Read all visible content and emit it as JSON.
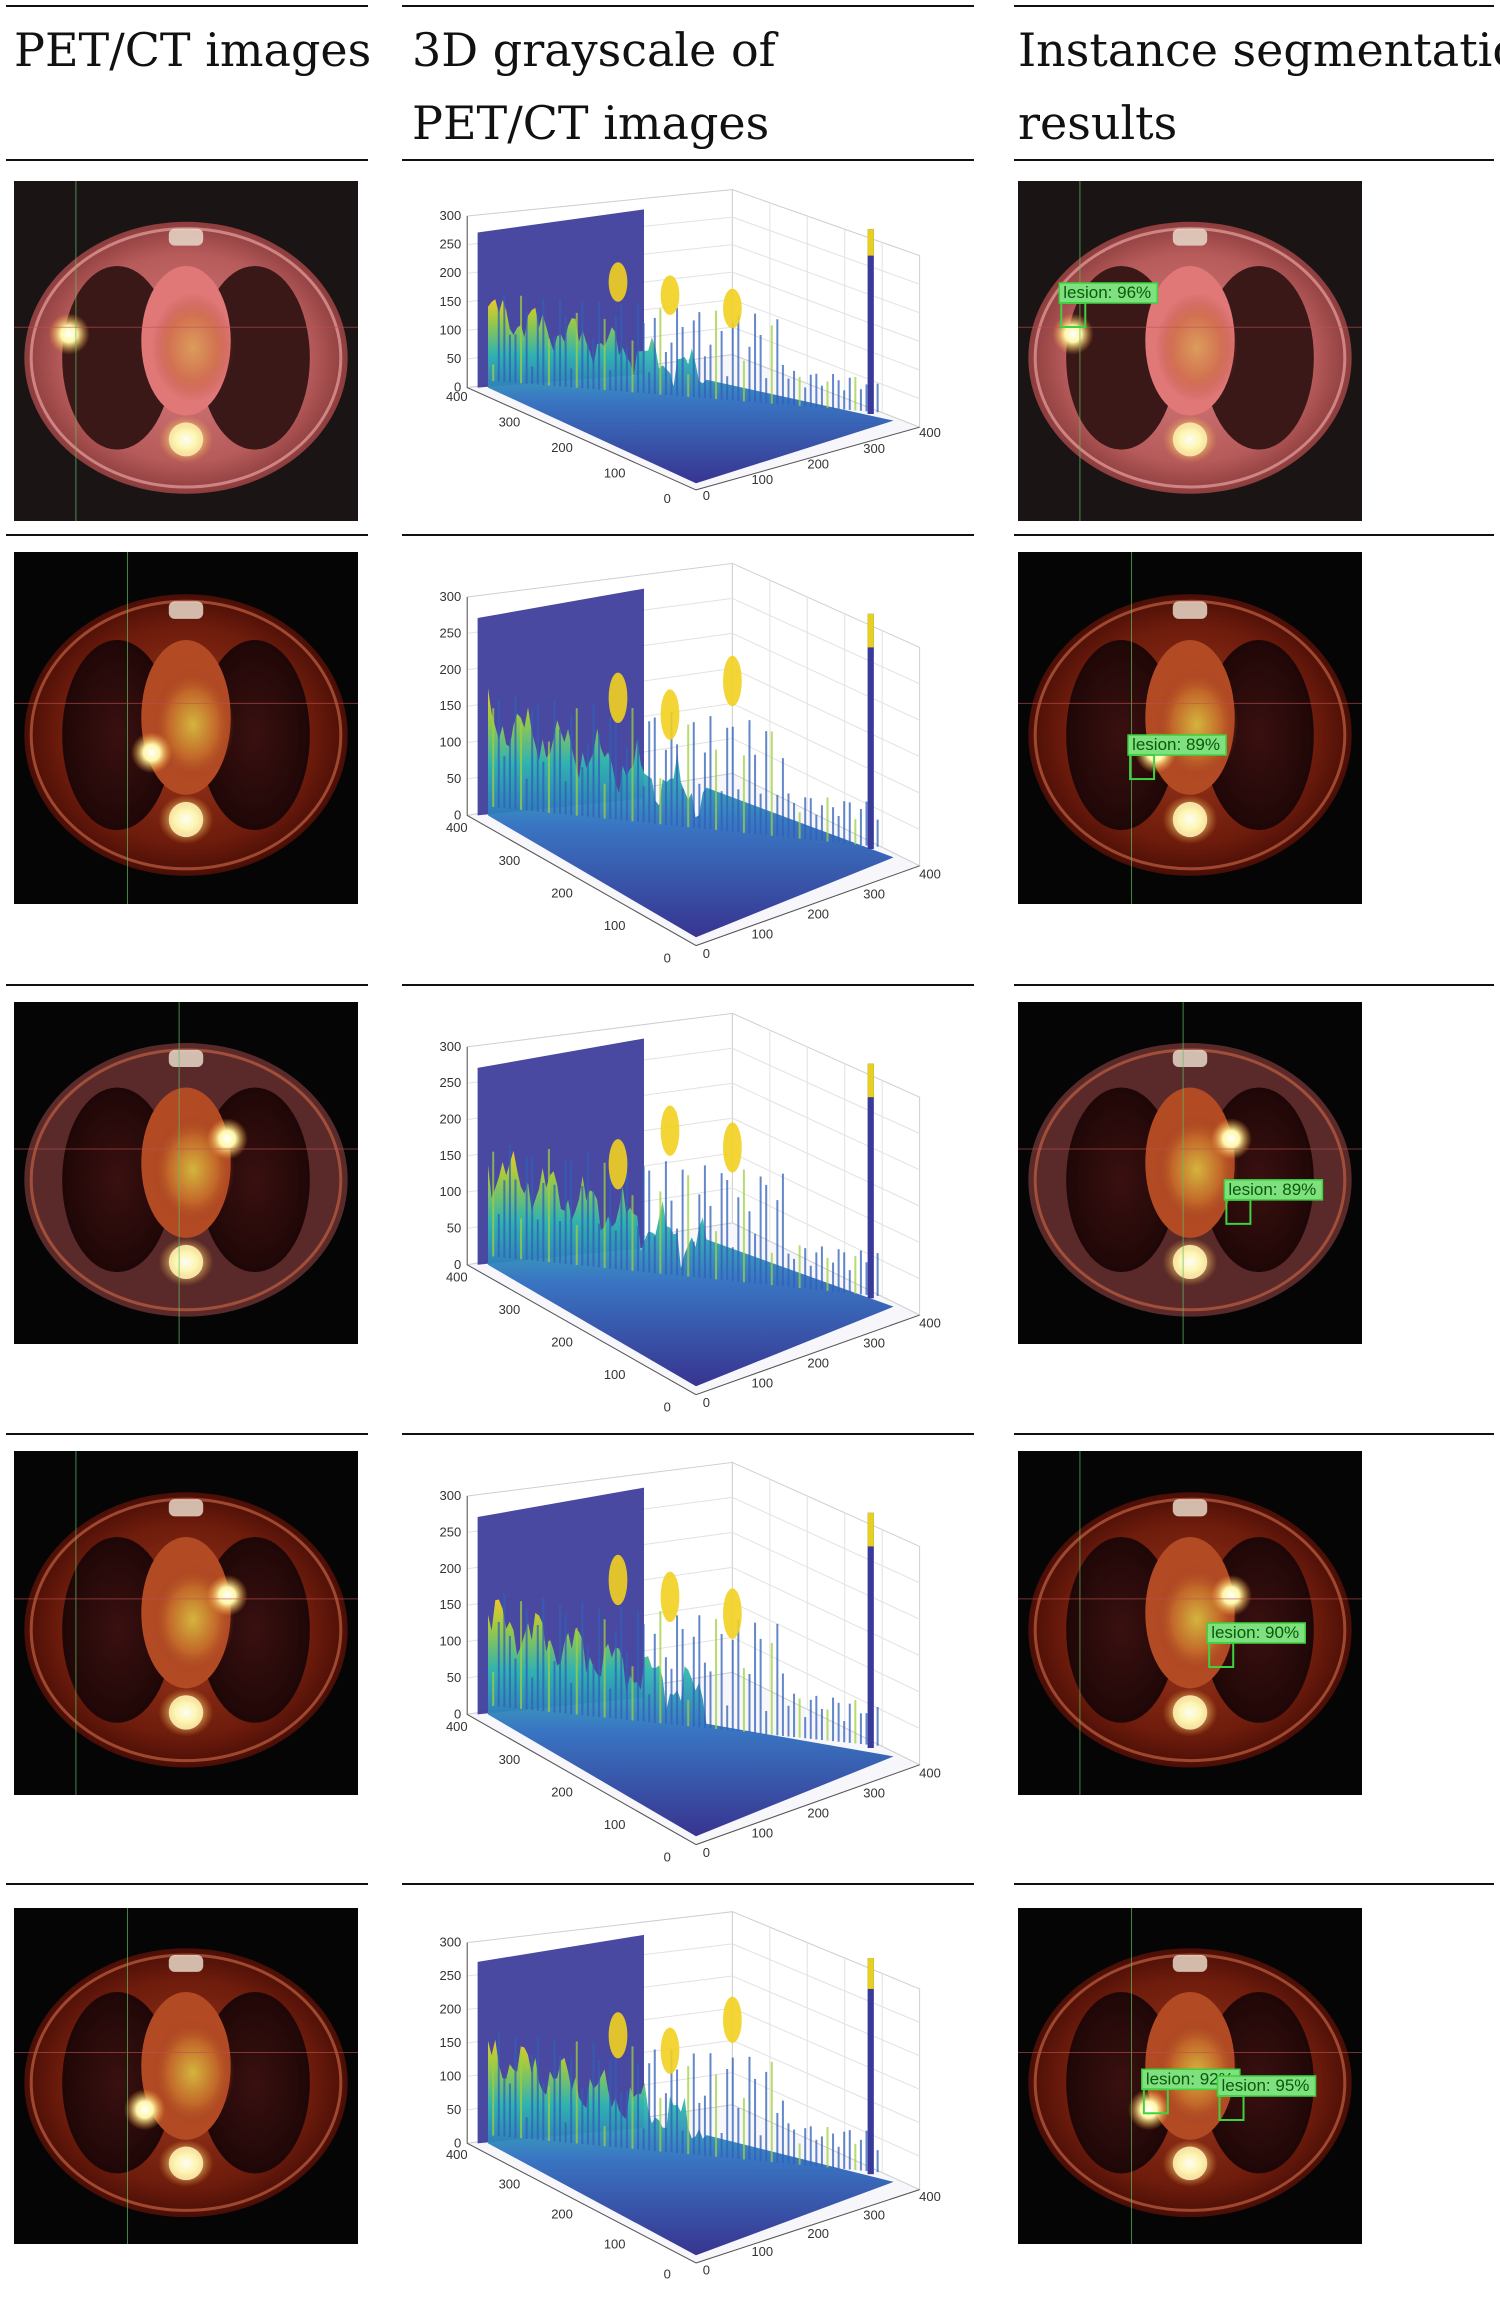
{
  "table": {
    "headers": [
      {
        "lines": [
          "PET/CT images"
        ]
      },
      {
        "lines": [
          "3D grayscale of",
          "PET/CT images"
        ]
      },
      {
        "lines": [
          "Instance segmentation",
          "results"
        ]
      }
    ],
    "surface_axes": {
      "z_ticks": [
        "300",
        "250",
        "200",
        "150",
        "100",
        "50",
        "0"
      ],
      "left_ticks": [
        "400",
        "300",
        "200",
        "100",
        "0"
      ],
      "right_ticks": [
        "0",
        "100",
        "200",
        "300",
        "400"
      ]
    },
    "rows": [
      {
        "theme": "pink",
        "detections": [
          {
            "label": "lesion: 96%"
          }
        ]
      },
      {
        "theme": "dark",
        "detections": [
          {
            "label": "lesion: 89%"
          }
        ]
      },
      {
        "theme": "pinkdark",
        "detections": [
          {
            "label": "lesion: 89%"
          }
        ]
      },
      {
        "theme": "dark",
        "detections": [
          {
            "label": "lesion: 90%"
          }
        ]
      },
      {
        "theme": "dark",
        "detections": [
          {
            "label": "lesion: 92%"
          },
          {
            "label": "lesion: 95%"
          }
        ]
      }
    ]
  },
  "colors": {
    "rule": "#111111",
    "detection_box": "#3fd13f",
    "detection_label_bg": "#7fe07f"
  }
}
